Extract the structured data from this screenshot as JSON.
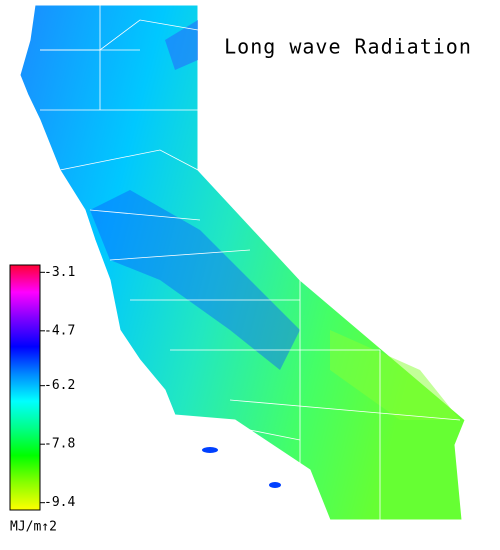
{
  "title": "Long wave Radiation",
  "colorbar": {
    "range": [
      -2.9,
      -9.6
    ],
    "ticks": [
      -3.1,
      -4.7,
      -6.2,
      -7.8,
      -9.4
    ],
    "unit": "MJ/m↑2",
    "colors": [
      "#ff0033",
      "#ff00ff",
      "#7a00ff",
      "#0000ff",
      "#0088ff",
      "#00ffff",
      "#00ff88",
      "#00ff00",
      "#88ff00",
      "#ffff00"
    ]
  }
}
